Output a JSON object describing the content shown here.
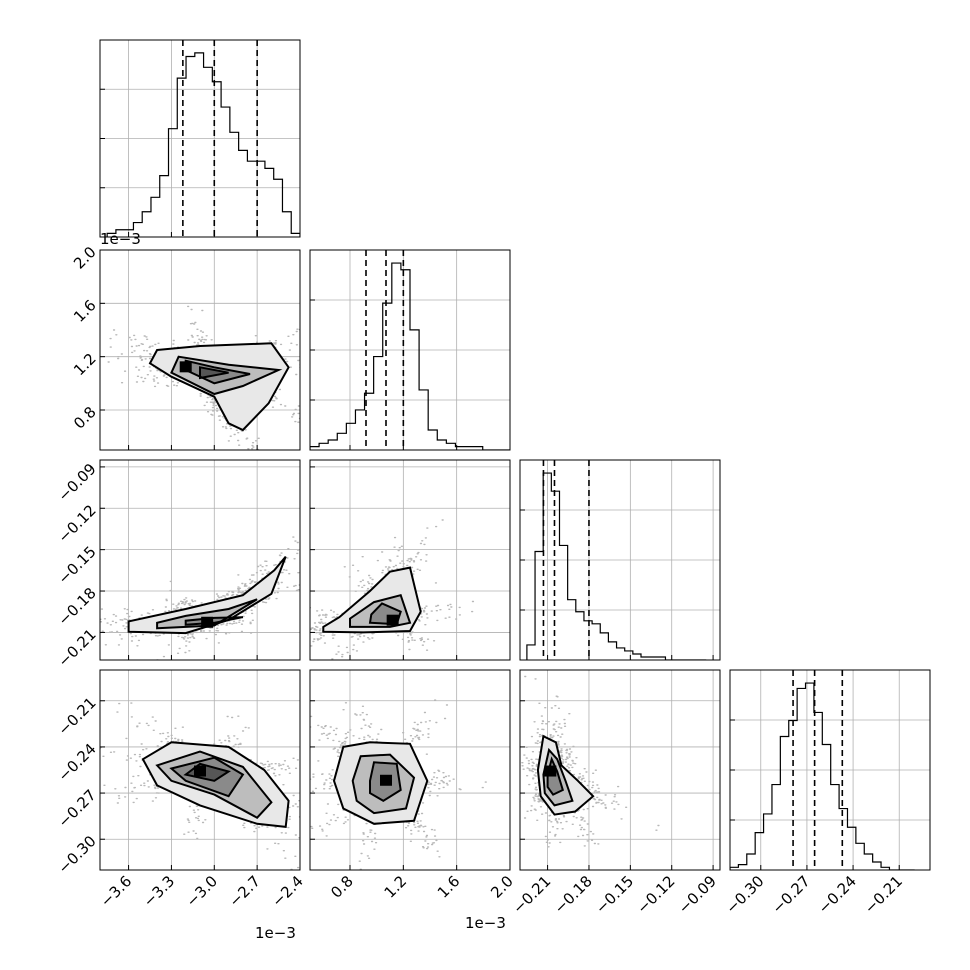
{
  "chart_data": {
    "type": "corner",
    "grid": true,
    "parameters": [
      {
        "range": [
          -0.0038,
          -0.0024
        ],
        "ticks": [
          -3.6,
          -3.3,
          -3.0,
          -2.7,
          -2.4
        ],
        "tick_labels": [
          "−3.6",
          "−3.3",
          "−3.0",
          "−2.7",
          "−2.4"
        ],
        "offset_text": "1e−3"
      },
      {
        "range": [
          0.0005,
          0.002
        ],
        "ticks": [
          0.8,
          1.2,
          1.6,
          2.0
        ],
        "tick_labels": [
          "0.8",
          "1.2",
          "1.6",
          "2.0"
        ],
        "offset_text": "1e−3"
      },
      {
        "range": [
          -0.23,
          -0.085
        ],
        "ticks": [
          -0.21,
          -0.18,
          -0.15,
          -0.12,
          -0.09
        ],
        "tick_labels": [
          "−0.21",
          "−0.18",
          "−0.15",
          "−0.12",
          "−0.09"
        ],
        "offset_text": ""
      },
      {
        "range": [
          -0.32,
          -0.19
        ],
        "ticks": [
          -0.3,
          -0.27,
          -0.24,
          -0.21
        ],
        "tick_labels": [
          "−0.30",
          "−0.27",
          "−0.24",
          "−0.21"
        ],
        "offset_text": ""
      }
    ],
    "marginals": [
      {
        "bin_edges": [
          -0.00375,
          -0.0024
        ],
        "counts": [
          1,
          2,
          2,
          4,
          7,
          11,
          17,
          30,
          44,
          50,
          51,
          47,
          43,
          36,
          29,
          24,
          21,
          21,
          19,
          16,
          7,
          1
        ],
        "quantiles": [
          -0.00322,
          -0.003,
          -0.0027
        ]
      },
      {
        "bin_edges": [
          0.0005,
          0.002
        ],
        "counts": [
          1,
          2,
          3,
          5,
          8,
          12,
          17,
          28,
          44,
          56,
          54,
          36,
          18,
          6,
          3,
          2,
          1,
          1,
          1,
          0,
          0,
          0
        ],
        "quantiles": [
          0.00092,
          0.00107,
          0.0012
        ]
      },
      {
        "bin_edges": [
          -0.225,
          -0.095
        ],
        "counts": [
          5,
          36,
          62,
          56,
          38,
          20,
          16,
          13,
          12,
          9,
          6,
          4,
          3,
          2,
          1,
          1,
          1,
          0,
          0,
          0,
          0,
          0
        ],
        "quantiles": [
          -0.213,
          -0.205,
          -0.18
        ]
      },
      {
        "bin_edges": [
          -0.32,
          -0.2
        ],
        "counts": [
          1,
          2,
          6,
          14,
          21,
          32,
          50,
          56,
          68,
          70,
          59,
          47,
          32,
          23,
          16,
          10,
          6,
          3,
          1,
          0,
          0,
          0
        ],
        "quantiles": [
          -0.279,
          -0.265,
          -0.247
        ]
      }
    ],
    "joints": [
      {
        "x": 0,
        "y": 1,
        "center": [
          -0.00305,
          0.00106
        ],
        "peak": [
          -0.0032,
          0.00112
        ],
        "contours": [
          [
            [
              -0.0034,
              0.00125
            ],
            [
              -0.0031,
              0.00128
            ],
            [
              -0.0026,
              0.0013
            ],
            [
              -0.00248,
              0.00112
            ],
            [
              -0.00262,
              0.00085
            ],
            [
              -0.0028,
              0.00065
            ],
            [
              -0.0029,
              0.0007
            ],
            [
              -0.003,
              0.0009
            ],
            [
              -0.0033,
              0.00105
            ],
            [
              -0.00345,
              0.00115
            ]
          ],
          [
            [
              -0.00325,
              0.0012
            ],
            [
              -0.0029,
              0.00114
            ],
            [
              -0.00255,
              0.0011
            ],
            [
              -0.0028,
              0.00098
            ],
            [
              -0.003,
              0.00092
            ],
            [
              -0.0033,
              0.00108
            ]
          ],
          [
            [
              -0.0032,
              0.00117
            ],
            [
              -0.003,
              0.00112
            ],
            [
              -0.00275,
              0.00107
            ],
            [
              -0.003,
              0.001
            ],
            [
              -0.0032,
              0.0011
            ]
          ],
          [
            [
              -0.0031,
              0.00112
            ],
            [
              -0.0029,
              0.00108
            ],
            [
              -0.0031,
              0.00104
            ]
          ]
        ]
      },
      {
        "x": 0,
        "y": 2,
        "center": [
          -0.0031,
          -0.2015
        ],
        "peak": [
          -0.00305,
          -0.203
        ],
        "contours": [
          [
            [
              -0.0036,
              -0.2095
            ],
            [
              -0.0032,
              -0.2105
            ],
            [
              -0.0029,
              -0.201
            ],
            [
              -0.0026,
              -0.182
            ],
            [
              -0.0025,
              -0.155
            ],
            [
              -0.00258,
              -0.165
            ],
            [
              -0.0028,
              -0.183
            ],
            [
              -0.0032,
              -0.193
            ],
            [
              -0.0036,
              -0.202
            ]
          ],
          [
            [
              -0.0034,
              -0.207
            ],
            [
              -0.003,
              -0.205
            ],
            [
              -0.0027,
              -0.186
            ],
            [
              -0.0029,
              -0.193
            ],
            [
              -0.0032,
              -0.198
            ],
            [
              -0.0034,
              -0.203
            ]
          ],
          [
            [
              -0.0032,
              -0.2045
            ],
            [
              -0.003,
              -0.203
            ],
            [
              -0.0028,
              -0.199
            ],
            [
              -0.003,
              -0.1995
            ],
            [
              -0.0032,
              -0.2015
            ]
          ]
        ]
      },
      {
        "x": 1,
        "y": 2,
        "center": [
          0.00105,
          -0.195
        ],
        "peak": [
          0.00112,
          -0.2015
        ],
        "contours": [
          [
            [
              0.0006,
              -0.2095
            ],
            [
              0.0009,
              -0.21
            ],
            [
              0.00125,
              -0.209
            ],
            [
              0.00133,
              -0.195
            ],
            [
              0.00125,
              -0.163
            ],
            [
              0.0011,
              -0.166
            ],
            [
              0.00095,
              -0.18
            ],
            [
              0.00072,
              -0.199
            ],
            [
              0.0006,
              -0.206
            ]
          ],
          [
            [
              0.0008,
              -0.206
            ],
            [
              0.0011,
              -0.206
            ],
            [
              0.00125,
              -0.203
            ],
            [
              0.00118,
              -0.183
            ],
            [
              0.00098,
              -0.188
            ],
            [
              0.0008,
              -0.2
            ]
          ],
          [
            [
              0.00095,
              -0.203
            ],
            [
              0.00115,
              -0.204
            ],
            [
              0.00118,
              -0.195
            ],
            [
              0.00104,
              -0.189
            ],
            [
              0.00096,
              -0.197
            ]
          ]
        ]
      },
      {
        "x": 0,
        "y": 3,
        "center": [
          -0.003,
          -0.258
        ],
        "peak": [
          -0.0031,
          -0.256
        ],
        "contours": [
          [
            [
              -0.0035,
              -0.248
            ],
            [
              -0.0033,
              -0.237
            ],
            [
              -0.0029,
              -0.24
            ],
            [
              -0.00265,
              -0.255
            ],
            [
              -0.00248,
              -0.275
            ],
            [
              -0.0025,
              -0.292
            ],
            [
              -0.0027,
              -0.29
            ],
            [
              -0.0031,
              -0.278
            ],
            [
              -0.0034,
              -0.265
            ]
          ],
          [
            [
              -0.0034,
              -0.252
            ],
            [
              -0.0031,
              -0.243
            ],
            [
              -0.0028,
              -0.253
            ],
            [
              -0.0026,
              -0.276
            ],
            [
              -0.0027,
              -0.286
            ],
            [
              -0.003,
              -0.271
            ],
            [
              -0.0033,
              -0.262
            ]
          ],
          [
            [
              -0.0033,
              -0.254
            ],
            [
              -0.003,
              -0.247
            ],
            [
              -0.0028,
              -0.258
            ],
            [
              -0.0029,
              -0.272
            ],
            [
              -0.0032,
              -0.262
            ]
          ],
          [
            [
              -0.0031,
              -0.251
            ],
            [
              -0.0029,
              -0.256
            ],
            [
              -0.003,
              -0.262
            ],
            [
              -0.0032,
              -0.258
            ]
          ]
        ]
      },
      {
        "x": 1,
        "y": 3,
        "center": [
          0.00107,
          -0.26
        ],
        "peak": [
          0.00107,
          -0.262
        ],
        "contours": [
          [
            [
              0.00068,
              -0.262
            ],
            [
              0.00075,
              -0.24
            ],
            [
              0.00095,
              -0.237
            ],
            [
              0.00125,
              -0.238
            ],
            [
              0.00138,
              -0.262
            ],
            [
              0.00128,
              -0.288
            ],
            [
              0.00098,
              -0.29
            ],
            [
              0.00075,
              -0.28
            ]
          ],
          [
            [
              0.00082,
              -0.262
            ],
            [
              0.00088,
              -0.246
            ],
            [
              0.0011,
              -0.245
            ],
            [
              0.00128,
              -0.26
            ],
            [
              0.00122,
              -0.28
            ],
            [
              0.00098,
              -0.283
            ],
            [
              0.00085,
              -0.275
            ]
          ],
          [
            [
              0.00095,
              -0.262
            ],
            [
              0.00098,
              -0.25
            ],
            [
              0.00115,
              -0.251
            ],
            [
              0.00118,
              -0.268
            ],
            [
              0.00105,
              -0.275
            ],
            [
              0.00095,
              -0.27
            ]
          ]
        ]
      },
      {
        "x": 2,
        "y": 3,
        "center": [
          -0.205,
          -0.262
        ],
        "peak": [
          -0.208,
          -0.256
        ],
        "contours": [
          [
            [
              -0.217,
              -0.255
            ],
            [
              -0.213,
              -0.233
            ],
            [
              -0.204,
              -0.237
            ],
            [
              -0.2,
              -0.252
            ],
            [
              -0.188,
              -0.262
            ],
            [
              -0.177,
              -0.272
            ],
            [
              -0.19,
              -0.282
            ],
            [
              -0.205,
              -0.284
            ],
            [
              -0.215,
              -0.272
            ]
          ],
          [
            [
              -0.213,
              -0.258
            ],
            [
              -0.209,
              -0.242
            ],
            [
              -0.203,
              -0.248
            ],
            [
              -0.197,
              -0.262
            ],
            [
              -0.192,
              -0.275
            ],
            [
              -0.205,
              -0.278
            ],
            [
              -0.212,
              -0.27
            ]
          ],
          [
            [
              -0.21,
              -0.258
            ],
            [
              -0.207,
              -0.248
            ],
            [
              -0.203,
              -0.256
            ],
            [
              -0.199,
              -0.268
            ],
            [
              -0.206,
              -0.271
            ],
            [
              -0.21,
              -0.266
            ]
          ]
        ]
      }
    ]
  }
}
